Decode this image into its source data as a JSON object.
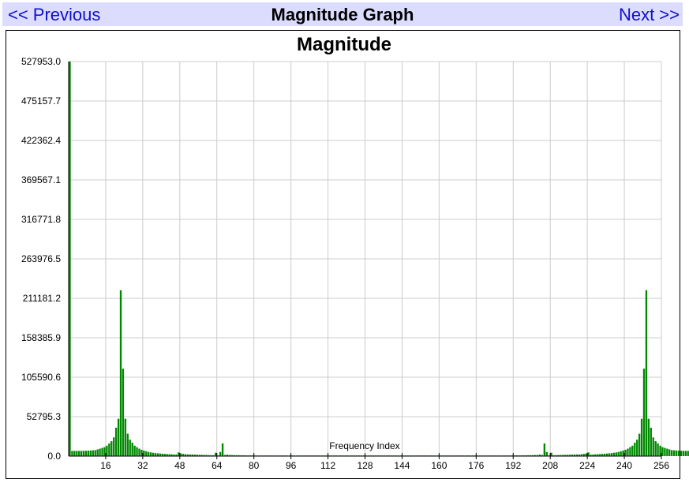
{
  "nav": {
    "prev_label": "<< Previous",
    "title": "Magnitude Graph",
    "next_label": "Next >>",
    "link_color": "#1010cc",
    "bar_color": "#dcdcff"
  },
  "chart_data": {
    "type": "bar",
    "title": "Magnitude",
    "xlabel": "Frequency Index",
    "ylabel": "",
    "xlim": [
      0,
      256
    ],
    "ylim": [
      0.0,
      527953.0
    ],
    "x_ticks": [
      16,
      32,
      48,
      64,
      80,
      96,
      112,
      128,
      144,
      160,
      176,
      192,
      208,
      224,
      240,
      256
    ],
    "y_ticks": [
      "0.0",
      "52795.3",
      "105590.6",
      "158385.9",
      "211181.2",
      "263976.5",
      "316771.8",
      "369567.1",
      "422362.4",
      "475157.7",
      "527953.0"
    ],
    "grid": true,
    "bar_color": "#008800",
    "values": [
      527953,
      7000,
      7000,
      7000,
      7000,
      7000,
      7100,
      7200,
      7300,
      7500,
      7800,
      8000,
      9000,
      10000,
      11000,
      12000,
      14000,
      17000,
      20000,
      25000,
      38000,
      50000,
      222000,
      117000,
      50000,
      30000,
      22000,
      18000,
      14000,
      12000,
      10000,
      8500,
      7500,
      6500,
      5500,
      5000,
      4500,
      4000,
      3800,
      3500,
      3200,
      3000,
      2800,
      2600,
      2400,
      2200,
      2000,
      5000,
      3500,
      3000,
      2500,
      2300,
      2200,
      2100,
      2000,
      1900,
      1800,
      1700,
      1600,
      1500,
      1400,
      1300,
      1200,
      4500,
      1000,
      5500,
      17000,
      1500,
      2000,
      1500,
      1400,
      1300,
      1200,
      1200,
      1100,
      1100,
      1000,
      1000,
      1000,
      1000,
      900,
      900,
      900,
      900,
      900,
      900,
      900,
      900,
      900,
      900,
      900,
      900,
      900,
      900,
      900,
      900,
      900,
      900,
      900,
      900,
      900,
      900,
      900,
      900,
      900,
      900,
      900,
      900,
      900,
      900,
      900,
      900,
      900,
      900,
      900,
      900,
      900,
      900,
      900,
      900,
      900,
      900,
      900,
      900,
      900,
      900,
      900,
      900,
      900,
      900,
      900,
      900,
      900,
      900,
      900,
      900,
      900,
      900,
      900,
      900,
      900,
      900,
      900,
      900,
      900,
      900,
      900,
      900,
      900,
      900,
      900,
      900,
      900,
      900,
      900,
      900,
      900,
      900,
      900,
      900,
      900,
      900,
      900,
      900,
      900,
      900,
      900,
      900,
      900,
      900,
      900,
      900,
      900,
      900,
      900,
      900,
      900,
      900,
      900,
      900,
      900,
      900,
      900,
      900,
      900,
      900,
      900,
      900,
      900,
      900,
      900,
      900,
      1000,
      1000,
      1000,
      1000,
      1100,
      1100,
      1200,
      1200,
      1300,
      1400,
      1500,
      2000,
      1500,
      17000,
      5500,
      1000,
      4500,
      1200,
      1300,
      1400,
      1500,
      1600,
      1700,
      1800,
      1900,
      2000,
      2100,
      2200,
      2300,
      2500,
      3000,
      3500,
      5000,
      2000,
      2200,
      2400,
      2600,
      2800,
      3000,
      3200,
      3500,
      3800,
      4000,
      4500,
      5000,
      5500,
      6500,
      7500,
      8500,
      10000,
      12000,
      14000,
      18000,
      22000,
      30000,
      50000,
      117000,
      222000,
      50000,
      38000,
      25000,
      20000,
      17000,
      14000,
      12000,
      11000,
      10000,
      9000,
      8000,
      7800,
      7500,
      7300,
      7200,
      7100,
      7000,
      7000,
      7000,
      7000,
      7000
    ]
  }
}
